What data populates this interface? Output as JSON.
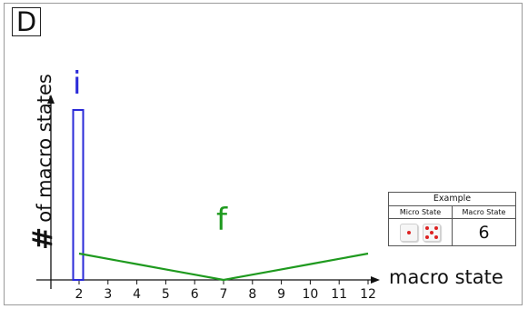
{
  "panel": {
    "label": "D"
  },
  "axes": {
    "ylabel_symbol": "#",
    "ylabel_text": "of macro states",
    "xlabel": "macro state",
    "x_ticks": [
      "2",
      "3",
      "4",
      "5",
      "6",
      "7",
      "8",
      "9",
      "10",
      "11",
      "12"
    ]
  },
  "chart_data": {
    "type": "line",
    "x": [
      2,
      3,
      4,
      5,
      6,
      7,
      8,
      9,
      10,
      11,
      12
    ],
    "series": [
      {
        "name": "i",
        "color": "#2a2ad8",
        "values": [
          1,
          0,
          0,
          0,
          0,
          0,
          0,
          0,
          0,
          0,
          0
        ]
      },
      {
        "name": "f",
        "color": "#1f9a1f",
        "values": [
          0.155,
          0.124,
          0.093,
          0.062,
          0.031,
          0,
          0.031,
          0.062,
          0.093,
          0.124,
          0.155
        ]
      }
    ],
    "annotations": {
      "initial": "i",
      "final": "f"
    },
    "xlabel": "macro state",
    "ylabel": "# of macro states"
  },
  "example": {
    "title": "Example",
    "col_micro": "Micro State",
    "col_macro": "Macro State",
    "dice_icons": [
      "die-face-1-icon",
      "die-face-5-icon"
    ],
    "macro_value": "6",
    "pip_color": "#d22222"
  }
}
